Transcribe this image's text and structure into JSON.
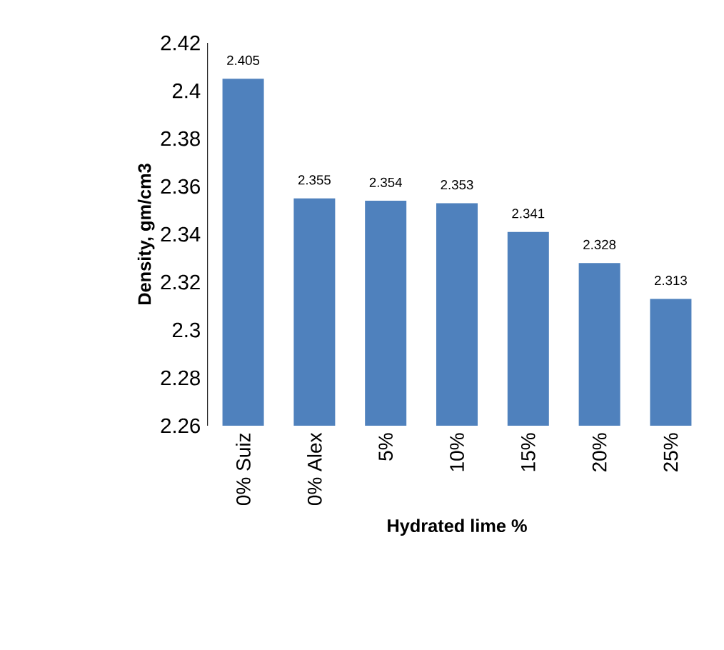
{
  "chart_data": {
    "type": "bar",
    "xlabel": "Hydrated lime %",
    "ylabel": "Density, gm/cm3",
    "categories": [
      "0% Suiz",
      "0% Alex",
      "5%",
      "10%",
      "15%",
      "20%",
      "25%"
    ],
    "values": [
      2.405,
      2.355,
      2.354,
      2.353,
      2.341,
      2.328,
      2.313
    ],
    "color": "#4f81bd",
    "data_labels": true,
    "ylim": [
      2.26,
      2.42
    ],
    "yticks": [
      2.26,
      2.28,
      2.3,
      2.32,
      2.34,
      2.36,
      2.38,
      2.4,
      2.42
    ]
  }
}
